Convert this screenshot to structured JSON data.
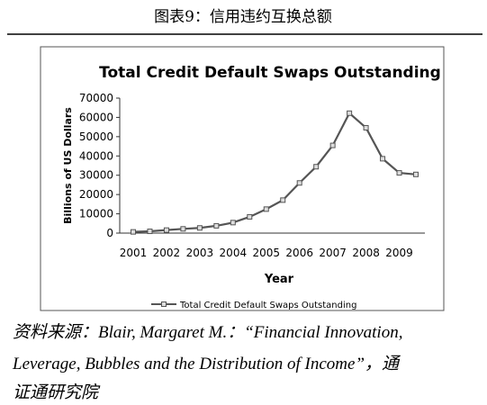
{
  "header": {
    "title": "图表9：信用违约互换总额"
  },
  "chart_data": {
    "type": "line",
    "title": "Total Credit Default Swaps Outstanding",
    "x_label": "Year",
    "y_label": "Billions of US Dollars",
    "categories": [
      "2001",
      null,
      "2002",
      null,
      "2003",
      null,
      "2004",
      null,
      "2005",
      null,
      "2006",
      null,
      "2007",
      null,
      "2008",
      null,
      "2009",
      null
    ],
    "series": [
      {
        "name": "Total Credit Default Swaps Outstanding",
        "color": "#555555",
        "values": [
          632,
          919,
          1563,
          2192,
          2688,
          3779,
          5442,
          8422,
          12430,
          17096,
          26006,
          34423,
          45464,
          62173,
          54612,
          38564,
          31223,
          30428
        ]
      }
    ],
    "ylim": [
      0,
      70000
    ],
    "yticks": [
      0,
      10000,
      20000,
      30000,
      40000,
      50000,
      60000,
      70000
    ],
    "legend": "bottom"
  },
  "source": {
    "lines": [
      "资料来源：Blair, Margaret M.：“Financial Innovation,",
      "Leverage, Bubbles and the Distribution of Income”，通",
      "证通研究院"
    ]
  }
}
